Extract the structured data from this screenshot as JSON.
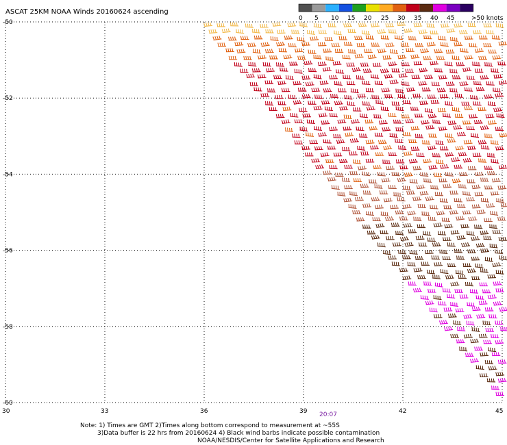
{
  "title": "ASCAT 25KM NOAA Winds 20160624 ascending",
  "legend": {
    "ticks": [
      "0",
      "5",
      "10",
      "15",
      "20",
      "25",
      "30",
      "35",
      "40",
      "45",
      ">50 knots"
    ],
    "colors": [
      "#505050",
      "#9a9a9a",
      "#2ab0ff",
      "#1450e0",
      "#1ea01e",
      "#e8e000",
      "#ffaa22",
      "#e06010",
      "#c0001a",
      "#5a2a10",
      "#e000e0",
      "#7a00c0",
      "#2a0060"
    ]
  },
  "chart_data": {
    "type": "scatter",
    "title": "ASCAT 25KM NOAA Winds 20160624 ascending",
    "xlabel": "",
    "ylabel": "",
    "xlim": [
      30,
      45
    ],
    "ylim": [
      -60,
      -50
    ],
    "xticks": [
      30,
      33,
      36,
      39,
      42,
      45
    ],
    "yticks": [
      -50,
      -52,
      -54,
      -56,
      -58,
      -60
    ],
    "grid": true,
    "swath": {
      "description_edge": [
        [
          35.9,
          -50.0
        ],
        [
          45.0,
          -60.0
        ]
      ],
      "annotation_time": "20:07"
    },
    "series": [
      {
        "range_knots": "25-30",
        "lat_band": [
          -50.0,
          -50.6
        ],
        "color": "#f2b94a"
      },
      {
        "range_knots": "30-35",
        "lat_band": [
          -50.3,
          -52.0
        ],
        "color": "#e06010"
      },
      {
        "range_knots": "35-40",
        "lat_band": [
          -51.0,
          -54.3
        ],
        "color": "#c0001a"
      },
      {
        "range_knots": "30-35",
        "lat_band": [
          -53.8,
          -55.4
        ],
        "color": "#b0553a"
      },
      {
        "range_knots": "35-40",
        "lat_band": [
          -55.2,
          -58.0
        ],
        "color": "#5a2a10"
      },
      {
        "range_knots": "40-45",
        "lat_band": [
          -56.7,
          -60.0
        ],
        "color": "#e000e0"
      }
    ]
  },
  "notes": [
    "Note: 1) Times are GMT 2)Times along bottom correspond to measurement at ~55S",
    "3)Data buffer is 22 hrs from 20160624 4) Black wind barbs indicate possible contamination",
    "NOAA/NESDIS/Center for Satellite Applications and Research"
  ]
}
